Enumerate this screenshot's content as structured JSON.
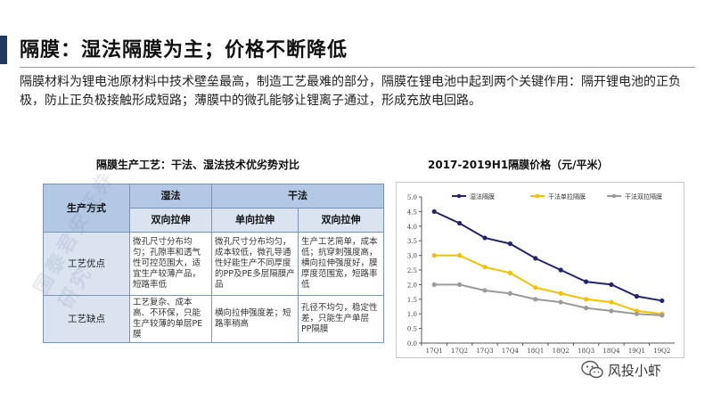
{
  "header": {
    "title": "隔膜：湿法隔膜为主；价格不断降低"
  },
  "intro": {
    "text": "隔膜材料为锂电池原材料中技术壁垒最高，制造工艺最难的部分，隔膜在锂电池中起到两个关键作用：隔开锂电池的正负极，防止正负极接触形成短路；薄膜中的微孔能够让锂离子通过，形成充放电回路。"
  },
  "table": {
    "title": "隔膜生产工艺：干法、湿法技术优劣势对比",
    "header_row1": {
      "mode": "生产方式",
      "wet": "湿法",
      "dry": "干法"
    },
    "header_row2": {
      "wet_bi": "双向拉伸",
      "dry_uni": "单向拉伸",
      "dry_bi": "双向拉伸"
    },
    "rows": [
      {
        "label": "工艺优点",
        "wet_bi": "微孔尺寸分布均匀；孔隙率和透气性可控范围大，适宜生产较薄产品，短路率低",
        "dry_uni": "微孔尺寸分布均匀，成本较低，微孔导通性好能生产不同厚度的PP及PE多层隔膜产品",
        "dry_bi": "生产工艺简单，成本低；抗穿刺强度高，横向拉伸强度好，膜厚度范围宽，短路率低"
      },
      {
        "label": "工艺缺点",
        "wet_bi": "工艺复杂、成本高、不环保，只能生产较薄的单层PE膜",
        "dry_uni": "横向拉伸强度差；短路率稍高",
        "dry_bi": "孔径不均匀，稳定性差，只能生产单层 PP隔膜"
      }
    ],
    "watermark": "国泰君安证券研究"
  },
  "chart_title": "2017-2019H1隔膜价格（元/平米）",
  "chart_data": {
    "type": "line",
    "title": "2017-2019H1隔膜价格（元/平米）",
    "categories": [
      "17Q1",
      "17Q2",
      "17Q3",
      "17Q4",
      "18Q1",
      "18Q2",
      "18Q3",
      "18Q4",
      "19Q1",
      "19Q2"
    ],
    "ylim": [
      0,
      5
    ],
    "yticks": [
      "0.0",
      "0.5",
      "1.0",
      "1.5",
      "2.0",
      "2.5",
      "3.0",
      "3.5",
      "4.0",
      "4.5",
      "5.0"
    ],
    "legend_position": "top",
    "grid": false,
    "series": [
      {
        "name": "湿法隔膜",
        "color": "#23246e",
        "values": [
          4.5,
          4.1,
          3.6,
          3.4,
          2.9,
          2.5,
          2.1,
          2.0,
          1.6,
          1.45
        ]
      },
      {
        "name": "干法单拉隔膜",
        "color": "#f5c000",
        "values": [
          3.0,
          3.0,
          2.6,
          2.4,
          1.9,
          1.7,
          1.5,
          1.4,
          1.1,
          1.0
        ]
      },
      {
        "name": "干法双拉隔膜",
        "color": "#9a9a9a",
        "values": [
          2.0,
          2.0,
          1.8,
          1.7,
          1.5,
          1.4,
          1.2,
          1.1,
          1.0,
          0.95
        ]
      }
    ]
  },
  "footer": {
    "brand": "风投小虾"
  }
}
